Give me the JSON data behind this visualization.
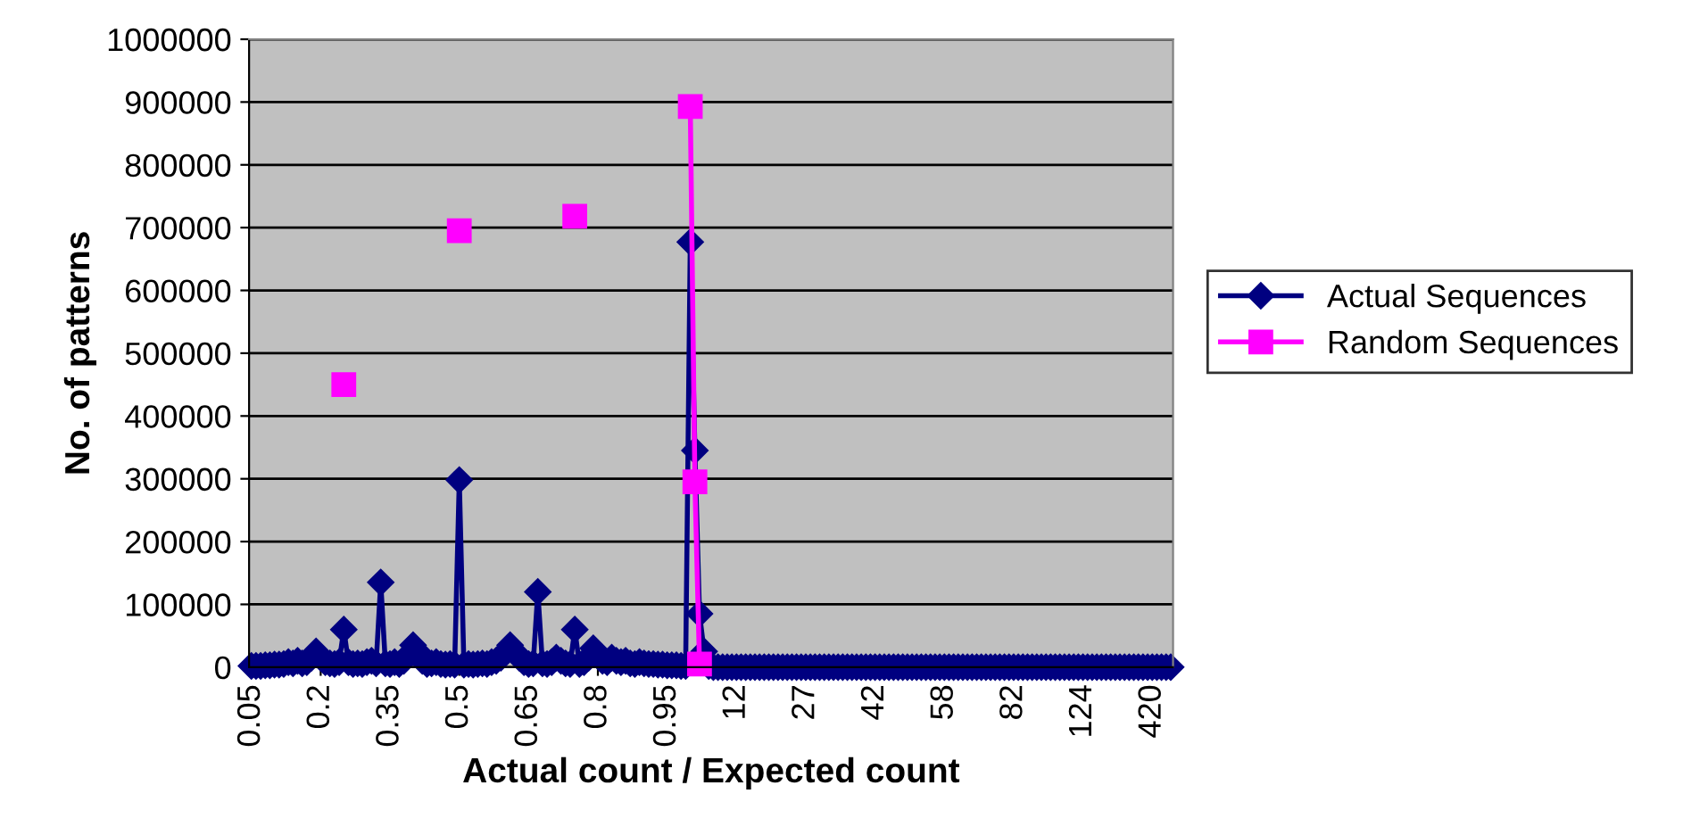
{
  "chart_data": {
    "type": "line",
    "xlabel": "Actual count / Expected count",
    "ylabel": "No. of patterns",
    "categories": [
      "0.05",
      null,
      null,
      null,
      null,
      null,
      null,
      null,
      null,
      null,
      null,
      null,
      null,
      null,
      null,
      "0.2",
      null,
      null,
      null,
      null,
      null,
      null,
      null,
      null,
      null,
      null,
      null,
      null,
      null,
      null,
      "0.35",
      null,
      null,
      null,
      null,
      null,
      null,
      null,
      null,
      null,
      null,
      null,
      null,
      null,
      null,
      "0.5",
      null,
      null,
      null,
      null,
      null,
      null,
      null,
      null,
      null,
      null,
      null,
      null,
      null,
      null,
      "0.65",
      null,
      null,
      null,
      null,
      null,
      null,
      null,
      null,
      null,
      null,
      null,
      null,
      null,
      null,
      "0.8",
      null,
      null,
      null,
      null,
      null,
      null,
      null,
      null,
      null,
      null,
      null,
      null,
      null,
      null,
      "0.95",
      null,
      null,
      null,
      null,
      null,
      null,
      null,
      null,
      null,
      null,
      null,
      null,
      null,
      null,
      "12",
      null,
      null,
      null,
      null,
      null,
      null,
      null,
      null,
      null,
      null,
      null,
      null,
      null,
      null,
      "27",
      null,
      null,
      null,
      null,
      null,
      null,
      null,
      null,
      null,
      null,
      null,
      null,
      null,
      null,
      "42",
      null,
      null,
      null,
      null,
      null,
      null,
      null,
      null,
      null,
      null,
      null,
      null,
      null,
      null,
      "58",
      null,
      null,
      null,
      null,
      null,
      null,
      null,
      null,
      null,
      null,
      null,
      null,
      null,
      null,
      "82",
      null,
      null,
      null,
      null,
      null,
      null,
      null,
      null,
      null,
      null,
      null,
      null,
      null,
      null,
      "124",
      null,
      null,
      null,
      null,
      null,
      null,
      null,
      null,
      null,
      null,
      null,
      null,
      null,
      null,
      "420",
      null,
      null,
      null,
      null
    ],
    "series": [
      {
        "name": "Actual Sequences",
        "color": "#000080",
        "marker": "diamond",
        "values": [
          2000,
          2000,
          2000,
          3000,
          3000,
          4000,
          4000,
          5000,
          8000,
          6000,
          10000,
          6000,
          8000,
          15000,
          25000,
          15000,
          8000,
          6000,
          5000,
          8000,
          60000,
          8000,
          5000,
          6000,
          5000,
          8000,
          10000,
          6000,
          135000,
          6000,
          5000,
          8000,
          5000,
          10000,
          20000,
          35000,
          25000,
          10000,
          5000,
          6000,
          8000,
          5000,
          4000,
          5000,
          4000,
          298000,
          4000,
          5000,
          4000,
          5000,
          6000,
          5000,
          8000,
          10000,
          15000,
          25000,
          35000,
          25000,
          15000,
          8000,
          5000,
          6000,
          120000,
          6000,
          5000,
          8000,
          15000,
          10000,
          6000,
          5000,
          60000,
          5000,
          8000,
          15000,
          30000,
          20000,
          10000,
          8000,
          15000,
          10000,
          8000,
          10000,
          6000,
          5000,
          8000,
          6000,
          5000,
          5000,
          4000,
          4000,
          3000,
          3000,
          3000,
          2000,
          2000,
          677000,
          345000,
          85000,
          25000,
          2000,
          0,
          0,
          0,
          0,
          0,
          0,
          0,
          0,
          0,
          0,
          0,
          0,
          0,
          0,
          0,
          0,
          0,
          0,
          0,
          0,
          0,
          0,
          0,
          0,
          0,
          0,
          0,
          0,
          0,
          0,
          0,
          0,
          0,
          0,
          0,
          0,
          0,
          0,
          0,
          0,
          0,
          0,
          0,
          0,
          0,
          0,
          0,
          0,
          0,
          0,
          0,
          0,
          0,
          0,
          0,
          0,
          0,
          0,
          0,
          0,
          0,
          0,
          0,
          0,
          0,
          0,
          0,
          0,
          0,
          0,
          0,
          0,
          0,
          0,
          0,
          0,
          0,
          0,
          0,
          0,
          0,
          0,
          0,
          0,
          0,
          0,
          0,
          0,
          0,
          0,
          0,
          0,
          0,
          0,
          0,
          0,
          0,
          0,
          0,
          0
        ]
      },
      {
        "name": "Random Sequences",
        "color": "#ff00ff",
        "marker": "square",
        "values": [
          null,
          null,
          null,
          null,
          null,
          null,
          null,
          null,
          null,
          null,
          null,
          null,
          null,
          null,
          null,
          null,
          null,
          null,
          null,
          null,
          450000,
          null,
          null,
          null,
          null,
          null,
          null,
          null,
          null,
          null,
          null,
          null,
          null,
          null,
          null,
          null,
          null,
          null,
          null,
          null,
          null,
          null,
          null,
          null,
          null,
          695000,
          null,
          null,
          null,
          null,
          null,
          null,
          null,
          null,
          null,
          null,
          null,
          null,
          null,
          null,
          null,
          null,
          null,
          null,
          null,
          null,
          null,
          null,
          null,
          null,
          718000,
          null,
          null,
          null,
          null,
          null,
          null,
          null,
          null,
          null,
          null,
          null,
          null,
          null,
          null,
          null,
          null,
          null,
          null,
          null,
          null,
          null,
          null,
          null,
          null,
          893000,
          295000,
          5000,
          null,
          null,
          null,
          null,
          null,
          null,
          null,
          null,
          null,
          null,
          null,
          null,
          null,
          null,
          null,
          null,
          null,
          null,
          null,
          null,
          null,
          null,
          null,
          null,
          null,
          null,
          null,
          null,
          null,
          null,
          null,
          null,
          null,
          null,
          null,
          null,
          null,
          null,
          null,
          null,
          null,
          null,
          null,
          null,
          null,
          null,
          null,
          null,
          null,
          null,
          null,
          null,
          null,
          null,
          null,
          null,
          null,
          null,
          null,
          null,
          null,
          null,
          null,
          null,
          null,
          null,
          null,
          null,
          null,
          null,
          null,
          null,
          null,
          null,
          null,
          null,
          null,
          null,
          null,
          null,
          null,
          null,
          null,
          null,
          null,
          null,
          null,
          null,
          null,
          null,
          null,
          null,
          null,
          null,
          null,
          null,
          null,
          null,
          null,
          null,
          null,
          null
        ]
      }
    ],
    "ylim": [
      0,
      1000000
    ],
    "yticks": [
      0,
      100000,
      200000,
      300000,
      400000,
      500000,
      600000,
      700000,
      800000,
      900000,
      1000000
    ],
    "grid": "y",
    "legend": "right"
  }
}
